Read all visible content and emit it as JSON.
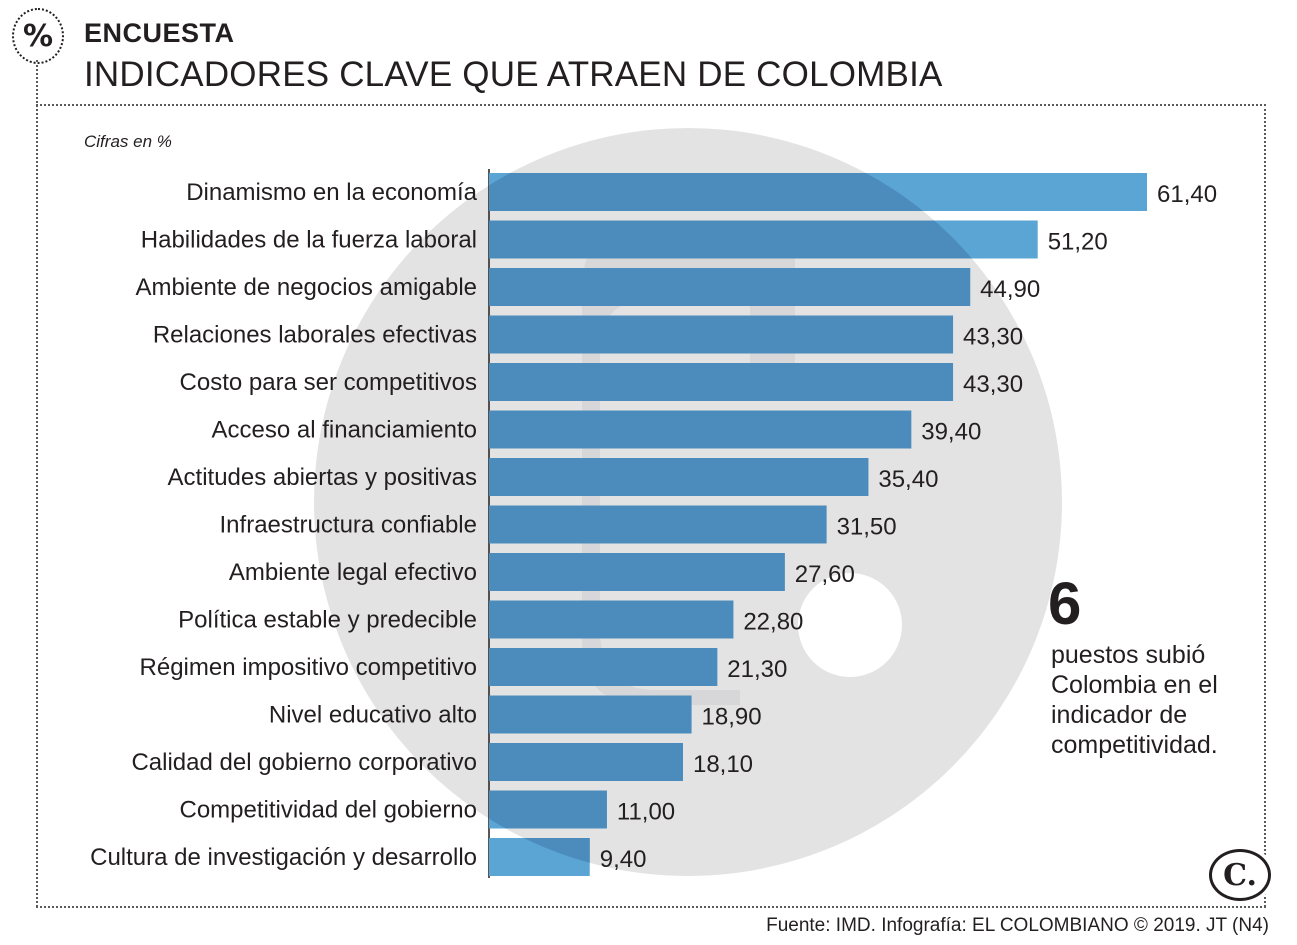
{
  "header": {
    "badge_symbol": "%",
    "kicker": "ENCUESTA",
    "title": "INDICADORES CLAVE QUE ATRAEN DE COLOMBIA",
    "units_note": "Cifras en %"
  },
  "chart_data": {
    "type": "bar",
    "orientation": "horizontal",
    "title": "INDICADORES CLAVE QUE ATRAEN DE COLOMBIA",
    "ylabel": "Cifras en %",
    "categories": [
      "Dinamismo en la economía",
      "Habilidades de la fuerza laboral",
      "Ambiente de negocios amigable",
      "Relaciones laborales efectivas",
      "Costo para ser competitivos",
      "Acceso al financiamiento",
      "Actitudes abiertas y positivas",
      "Infraestructura confiable",
      "Ambiente legal efectivo",
      "Política estable y predecible",
      "Régimen impositivo competitivo",
      "Nivel educativo alto",
      "Calidad del gobierno corporativo",
      "Competitividad del gobierno",
      "Cultura de investigación y desarrollo"
    ],
    "values": [
      61.4,
      51.2,
      44.9,
      43.3,
      43.3,
      39.4,
      35.4,
      31.5,
      27.6,
      22.8,
      21.3,
      18.9,
      18.1,
      11.0,
      9.4
    ],
    "value_labels": [
      "61,40",
      "51,20",
      "44,90",
      "43,30",
      "43,30",
      "39,40",
      "35,40",
      "31,50",
      "27,60",
      "22,80",
      "21,30",
      "18,90",
      "18,10",
      "11,00",
      "9,40"
    ],
    "xlim": [
      0,
      65
    ],
    "grid": false,
    "legend": "none",
    "bar_color": "#5aa5d4",
    "overlap_color": "#4c8cbc"
  },
  "callout": {
    "number": "6",
    "text": "puestos subió Colombia en el indicador de competitividad."
  },
  "logo": {
    "mark": "C."
  },
  "source": "Fuente: IMD. Infografía: EL COLOMBIANO © 2019. JT (N4)",
  "colors": {
    "text": "#231f20",
    "watermark": "#e3e3e4",
    "bar": "#5aa5d4",
    "bar_overlap": "#4c8cbc"
  }
}
